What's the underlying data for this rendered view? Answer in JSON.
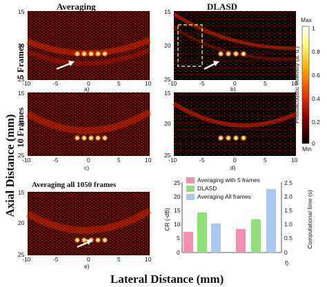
{
  "column_headers": [
    "Averaging",
    "DLASD"
  ],
  "row_labels": [
    "5 Frames",
    "10 Frames"
  ],
  "panel3_title": "Averaging all 1050 frames",
  "y_axis_label": "Axial Distance (mm)",
  "x_axis_label": "Lateral Distance (mm)",
  "image_x_ticks": [
    "-10",
    "-5",
    "0",
    "5",
    "10"
  ],
  "image_y_ticks": [
    "15",
    "20",
    "25"
  ],
  "subplot_letters": [
    "a)",
    "b)",
    "c)",
    "d)",
    "e)",
    "f)"
  ],
  "colorbar": {
    "label": "Photoacoustic Intensity (a. u.)",
    "top": "Max",
    "bottom": "Min",
    "ticks": [
      "1",
      "0.8",
      "0.6",
      "0.4",
      "0.2",
      "0"
    ]
  },
  "colors": {
    "pink": "#f48fb1",
    "green": "#8fe07a",
    "blue": "#a9c8f0",
    "box": "#c6e84a",
    "arrow": "#ffffff"
  },
  "chart_data": {
    "type": "bar",
    "left_axis": {
      "label": "CR (-dB)",
      "ticks": [
        "0",
        "5",
        "10",
        "15",
        "20",
        "25"
      ],
      "ylim": [
        0,
        25
      ]
    },
    "right_axis": {
      "label": "Computational time (s)",
      "ticks": [
        "0",
        "0.5",
        "1.0",
        "1.5",
        "2.0",
        "2.5"
      ],
      "ylim": [
        0,
        2.5
      ]
    },
    "series": [
      {
        "name": "Averaging with 5 frames",
        "color": "#f48fb1",
        "cr": 7.5,
        "time": 0.85
      },
      {
        "name": "DLASD",
        "color": "#8fe07a",
        "cr": 14.5,
        "time": 1.2
      },
      {
        "name": "Averaging All frames",
        "color": "#a9c8f0",
        "cr": 10.5,
        "time": 2.3
      }
    ]
  }
}
